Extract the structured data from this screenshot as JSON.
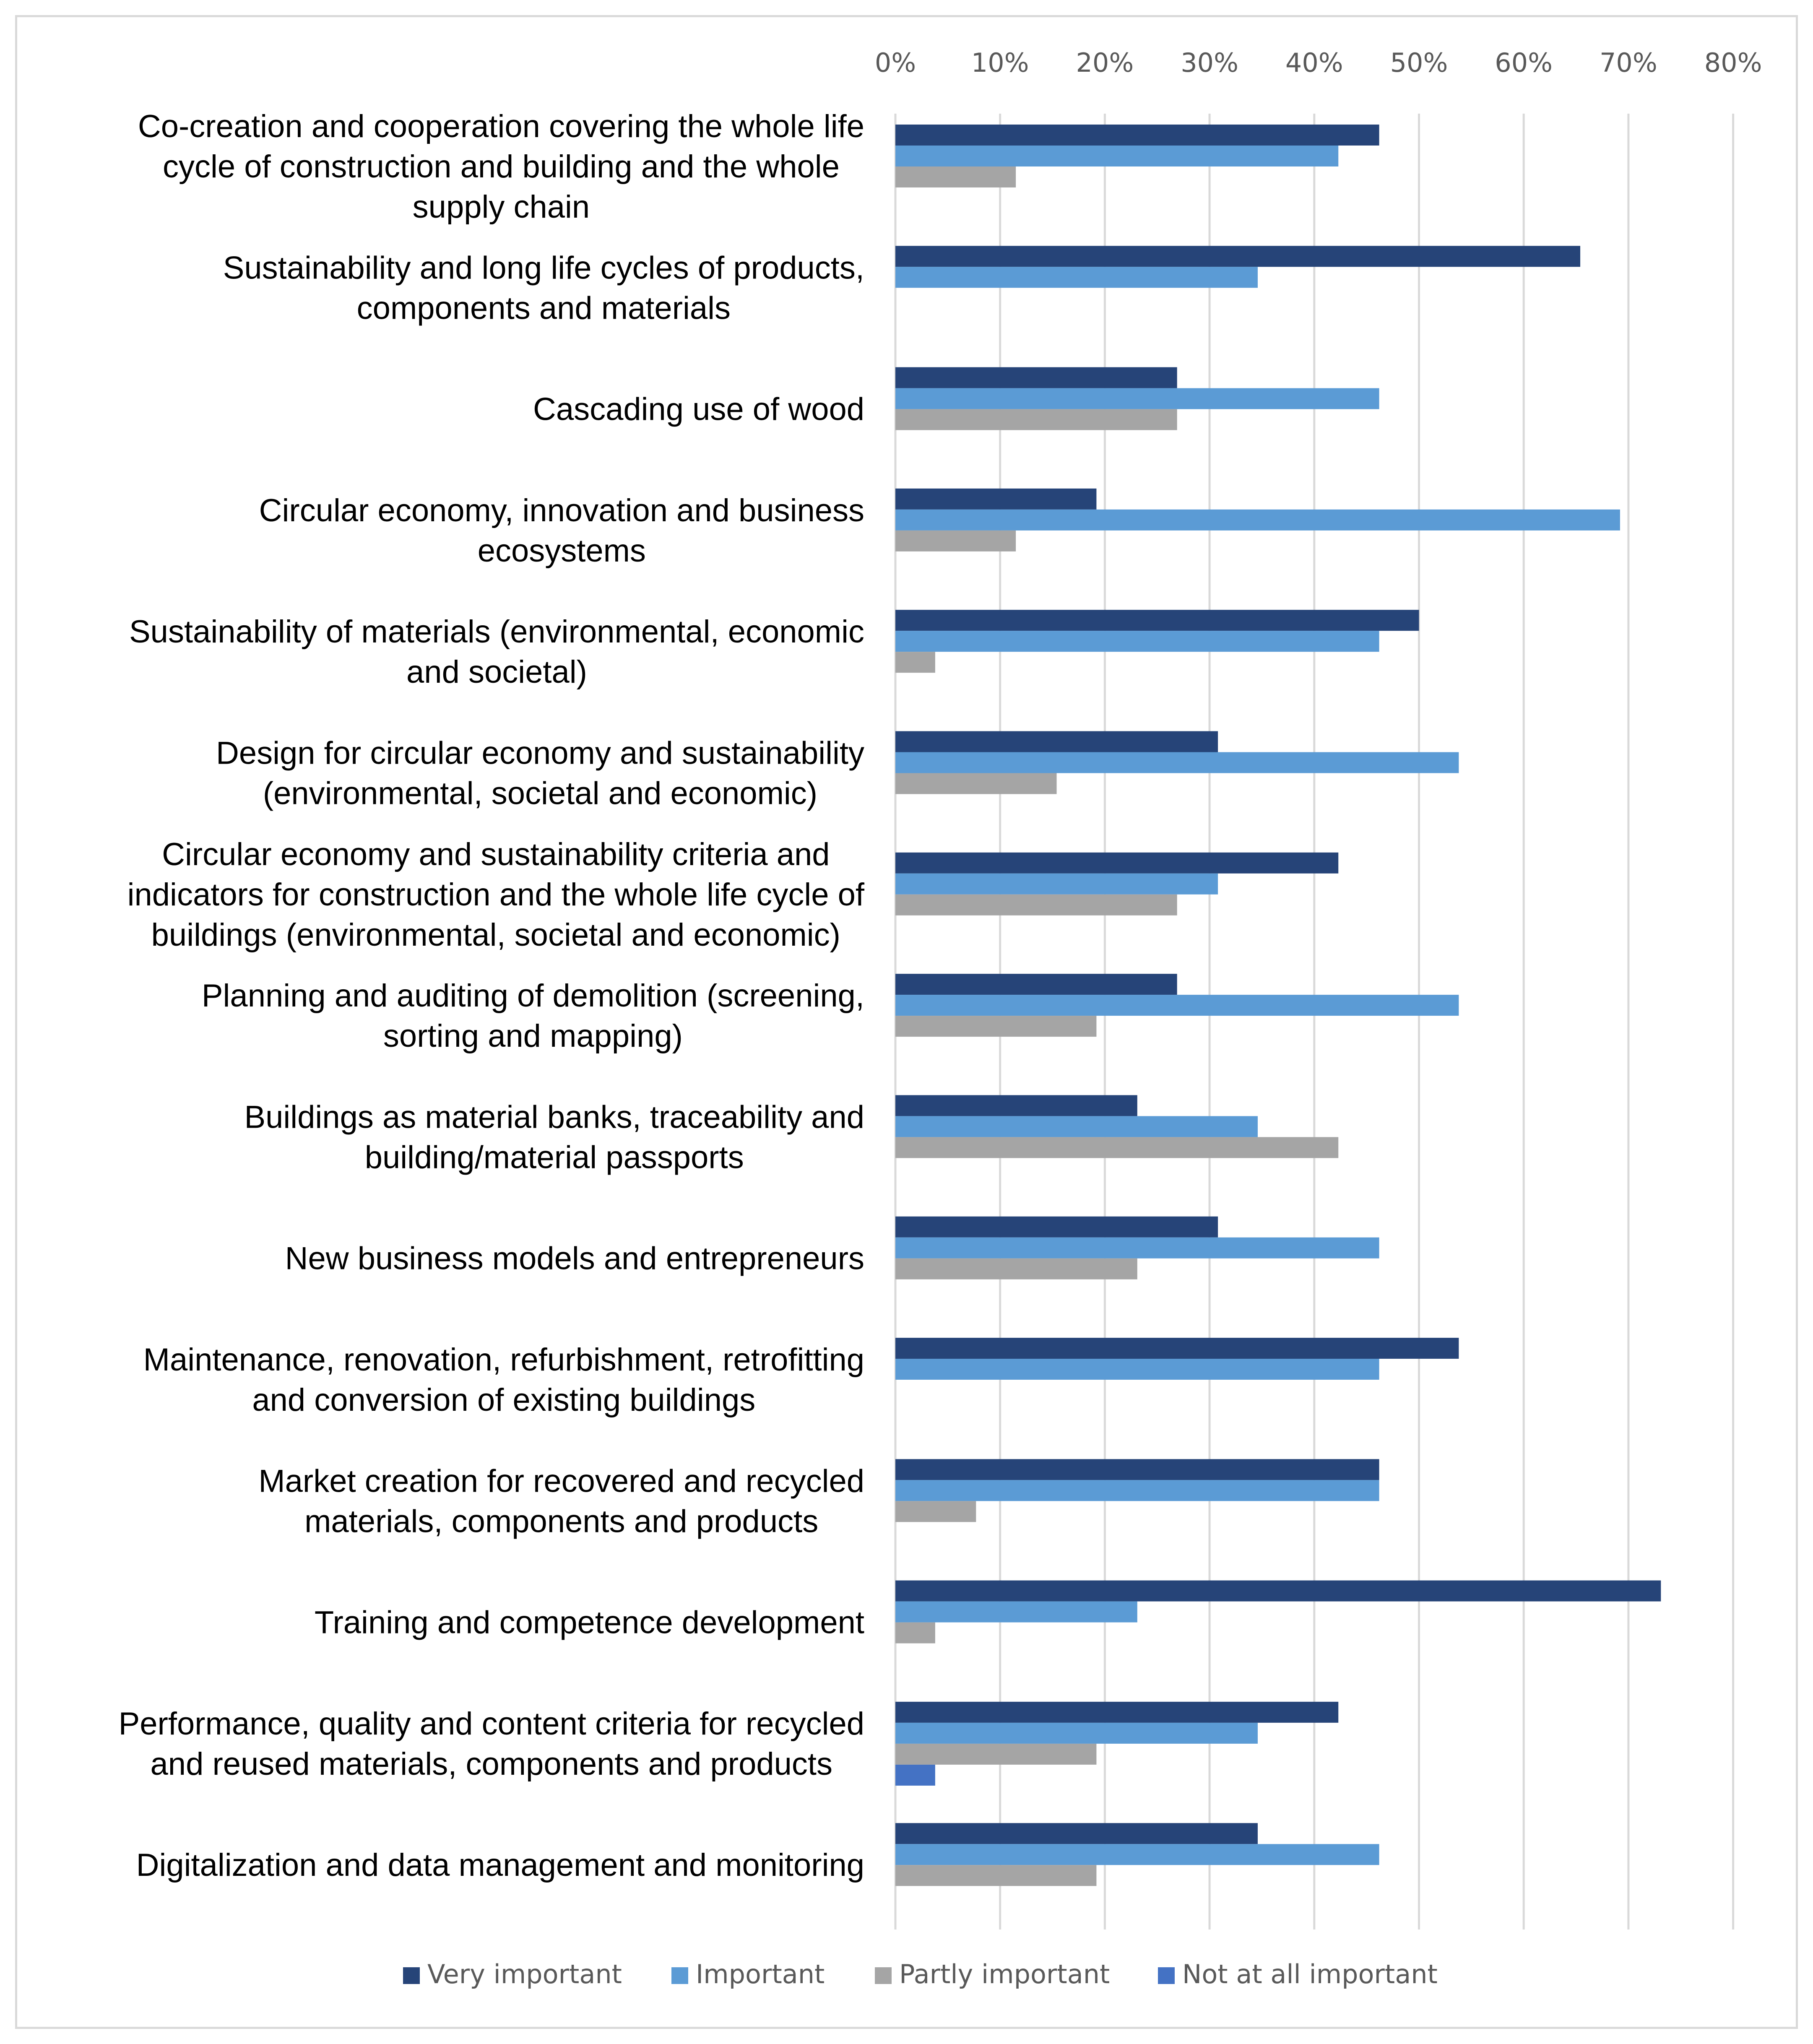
{
  "chart_data": {
    "type": "bar",
    "orientation": "horizontal",
    "title": "",
    "xlabel": "",
    "ylabel": "",
    "xlim": [
      0,
      80
    ],
    "x_tick_values": [
      0,
      10,
      20,
      30,
      40,
      50,
      60,
      70,
      80
    ],
    "x_tick_labels": [
      "0%",
      "10%",
      "20%",
      "30%",
      "40%",
      "50%",
      "60%",
      "70%",
      "80%"
    ],
    "x_axis_position": "top",
    "grid": true,
    "legend_position": "bottom",
    "categories": [
      [
        "Co-creation and cooperation covering the whole life",
        "cycle of construction and building and the whole",
        "supply chain"
      ],
      [
        "Sustainability and long life cycles of products,",
        "components and materials"
      ],
      [
        "Cascading use of wood"
      ],
      [
        "Circular economy, innovation and business",
        "ecosystems"
      ],
      [
        "Sustainability of materials (environmental, economic",
        "and societal)"
      ],
      [
        "Design for circular economy and sustainability",
        "(environmental, societal and economic)"
      ],
      [
        "Circular economy and sustainability criteria and",
        "indicators for construction and the whole life cycle of",
        "buildings (environmental, societal and economic)"
      ],
      [
        "Planning and auditing of demolition (screening,",
        "sorting and mapping)"
      ],
      [
        "Buildings as material banks, traceability and",
        "building/material passports"
      ],
      [
        "New business models and entrepreneurs"
      ],
      [
        "Maintenance, renovation, refurbishment, retrofitting",
        "and conversion of existing buildings"
      ],
      [
        "Market creation for recovered and recycled",
        "materials, components and products"
      ],
      [
        "Training and competence development"
      ],
      [
        "Performance, quality and content criteria for recycled",
        "and reused materials, components and products"
      ],
      [
        "Digitalization and data management and monitoring"
      ]
    ],
    "series": [
      {
        "name": "Very important",
        "color": "#264478",
        "values": [
          46.2,
          65.4,
          26.9,
          19.2,
          50.0,
          30.8,
          42.3,
          26.9,
          23.1,
          30.8,
          53.8,
          46.2,
          73.1,
          42.3,
          34.6
        ]
      },
      {
        "name": "Important",
        "color": "#5b9bd5",
        "values": [
          42.3,
          34.6,
          46.2,
          69.2,
          46.2,
          53.8,
          30.8,
          53.8,
          34.6,
          46.2,
          46.2,
          46.2,
          23.1,
          34.6,
          46.2
        ]
      },
      {
        "name": "Partly important",
        "color": "#a5a5a5",
        "values": [
          11.5,
          0,
          26.9,
          11.5,
          3.8,
          15.4,
          26.9,
          19.2,
          42.3,
          23.1,
          0,
          7.7,
          3.8,
          19.2,
          19.2
        ]
      },
      {
        "name": "Not at all important",
        "color": "#4472c4",
        "values": [
          0,
          0,
          0,
          0,
          0,
          0,
          0,
          0,
          0,
          0,
          0,
          0,
          0,
          3.8,
          0
        ]
      }
    ],
    "gridline_color": "#d9d9d9"
  }
}
